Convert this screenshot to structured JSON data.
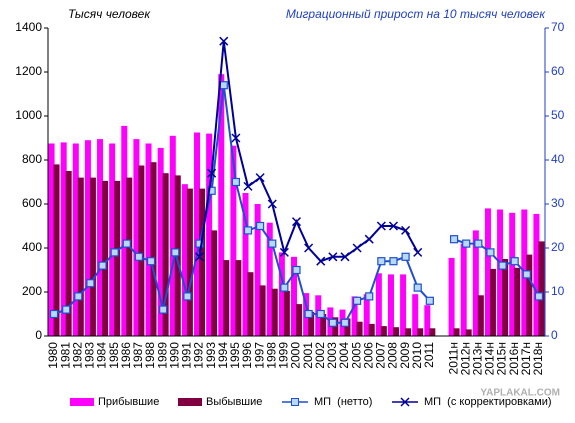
{
  "chart_data": {
    "type": "bar-line",
    "ylabel": "Тысяч человек",
    "y2label": "Миграционный прирост на 10 тысяч человек",
    "watermark": "YAPLAKAL.COM",
    "categories": [
      "1980",
      "1981",
      "1982",
      "1983",
      "1984",
      "1985",
      "1986",
      "1987",
      "1988",
      "1989",
      "1990",
      "1991",
      "1992",
      "1993",
      "1994",
      "1995",
      "1996",
      "1997",
      "1998",
      "1999",
      "2000",
      "2001",
      "2002",
      "2003",
      "2004",
      "2005",
      "2006",
      "2007",
      "2008",
      "2009",
      "2010",
      "2011",
      null,
      "2011н",
      "2012н",
      "2013н",
      "2014н",
      "2015н",
      "2016н",
      "2017н",
      "2018н"
    ],
    "series": [
      {
        "name": "Прибывшие",
        "type": "bar",
        "color": "#ff00ff",
        "values": [
          875,
          880,
          875,
          890,
          895,
          875,
          955,
          895,
          875,
          855,
          910,
          690,
          925,
          920,
          1190,
          865,
          650,
          600,
          515,
          380,
          360,
          195,
          185,
          130,
          120,
          180,
          190,
          285,
          280,
          280,
          190,
          140,
          null,
          355,
          420,
          480,
          580,
          575,
          560,
          575,
          555
        ]
      },
      {
        "name": "Выбывшие",
        "type": "bar",
        "color": "#800040",
        "values": [
          780,
          750,
          720,
          720,
          705,
          705,
          720,
          775,
          790,
          740,
          730,
          670,
          670,
          480,
          345,
          345,
          290,
          230,
          215,
          205,
          145,
          110,
          100,
          85,
          80,
          65,
          55,
          45,
          40,
          35,
          35,
          35,
          null,
          35,
          30,
          185,
          305,
          350,
          310,
          370,
          430
        ]
      },
      {
        "name": "МП  (нетто)",
        "type": "line",
        "marker": "square",
        "axis": "y2",
        "color": "#1f4fcf",
        "values": [
          5,
          6,
          9,
          12,
          16,
          19,
          21,
          18,
          17,
          6,
          19,
          9,
          21,
          33,
          57,
          35,
          24,
          25,
          21,
          11,
          15,
          5,
          5,
          3,
          3,
          8,
          9,
          17,
          17,
          18,
          11,
          8,
          null,
          22,
          21,
          21,
          19,
          16,
          17,
          14,
          9
        ]
      },
      {
        "name": "МП  (с корректировками)",
        "type": "line",
        "marker": "x",
        "axis": "y2",
        "color": "#000099",
        "values": [
          null,
          null,
          null,
          null,
          null,
          null,
          null,
          null,
          null,
          null,
          null,
          null,
          18,
          37,
          67,
          45,
          34,
          36,
          30,
          19,
          26,
          20,
          17,
          18,
          18,
          20,
          22,
          25,
          25,
          24,
          19,
          null,
          null,
          null,
          null,
          null,
          null,
          null,
          null,
          null,
          null
        ]
      }
    ],
    "ylim": [
      0,
      1400
    ],
    "yticks": [
      0,
      200,
      400,
      600,
      800,
      1000,
      1200,
      1400
    ],
    "y2lim": [
      0,
      70
    ],
    "y2ticks": [
      0,
      10,
      20,
      30,
      40,
      50,
      60,
      70
    ],
    "grid": false
  }
}
